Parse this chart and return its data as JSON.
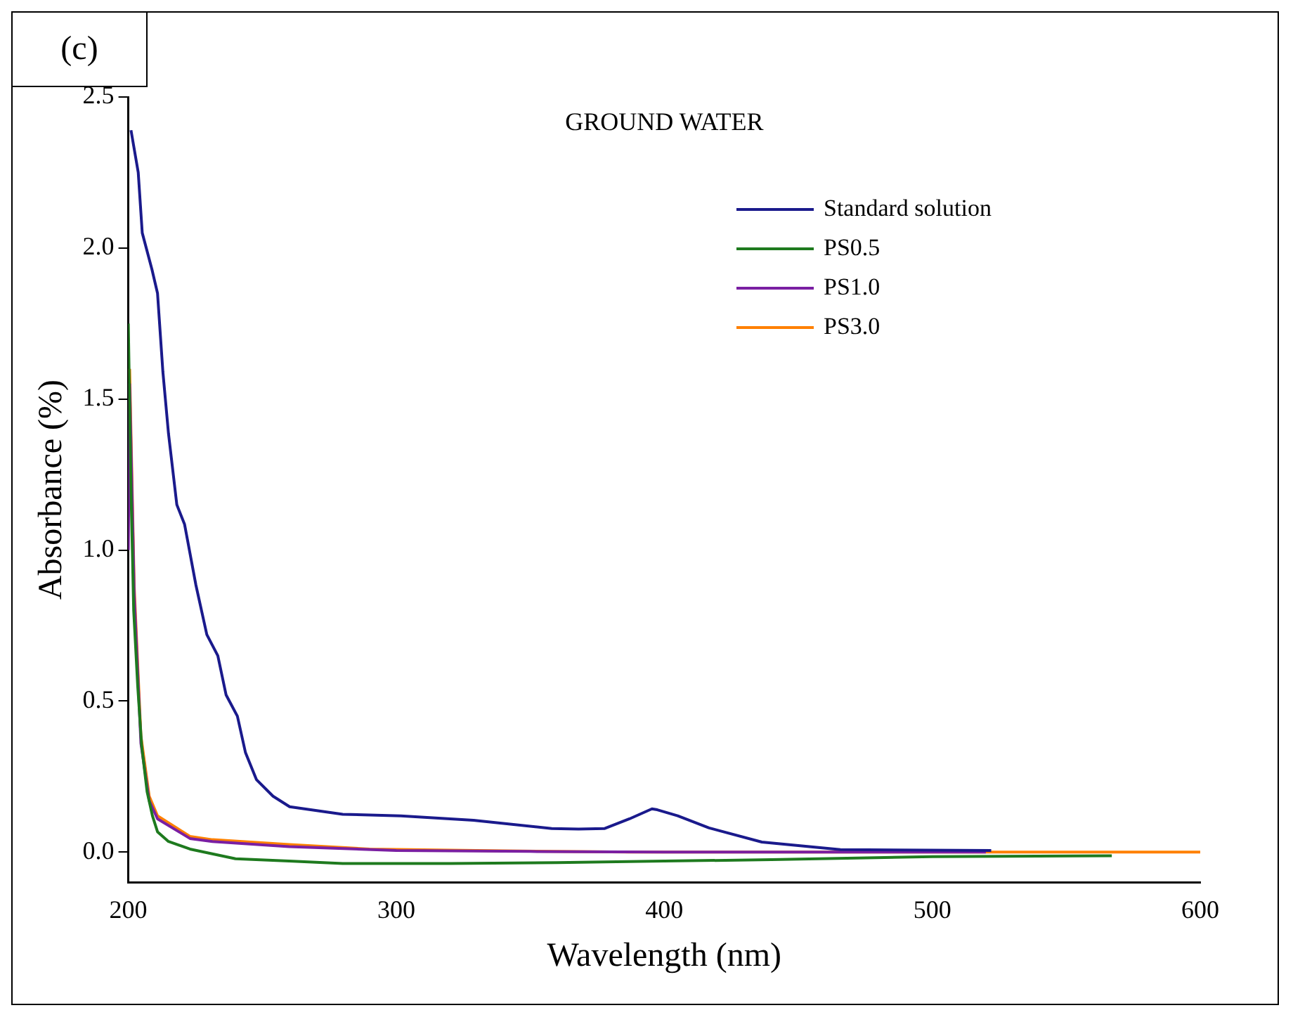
{
  "chart_data": {
    "type": "line",
    "title": "GROUND WATER",
    "xlabel": "Wavelength (nm)",
    "ylabel": "Absorbance (%)",
    "annotations": [
      "(c)"
    ],
    "xlim": [
      200,
      600
    ],
    "xticks": [
      200,
      300,
      400,
      500,
      600
    ],
    "ylim": [
      -0.1,
      2.5
    ],
    "yticks": [
      {
        "value": 0,
        "label": "0.0"
      },
      0.5,
      {
        "value": 1,
        "label": "1.0"
      },
      1.5,
      {
        "value": 2,
        "label": "2.0"
      },
      2.5
    ],
    "legend": "top right",
    "grid": false,
    "marker": "none",
    "line_style": "solid",
    "series": [
      {
        "name": "Standard solution",
        "color": "#1a1a8c",
        "x": [
          201,
          203.7,
          205.2,
          208.8,
          210.9,
          212.9,
          215,
          218.1,
          221,
          225.2,
          229.3,
          233.4,
          236.5,
          240.7,
          243.7,
          247.8,
          254,
          260.2,
          280,
          301.7,
          328.8,
          358,
          368,
          377.8,
          387,
          395.4,
          397.4,
          405,
          416.7,
          436.4,
          465.7,
          522
        ],
        "values": [
          2.39,
          2.25,
          2.05,
          1.93,
          1.85,
          1.59,
          1.385,
          1.15,
          1.085,
          0.885,
          0.72,
          0.65,
          0.52,
          0.45,
          0.33,
          0.24,
          0.185,
          0.15,
          0.125,
          0.12,
          0.105,
          0.078,
          0.076,
          0.078,
          0.11,
          0.143,
          0.14,
          0.12,
          0.08,
          0.033,
          0.008,
          0.005
        ]
      },
      {
        "name": "PS0.5",
        "color": "#1e7a1e",
        "x": [
          200,
          201,
          202,
          203.5,
          205,
          207,
          209,
          210.9,
          215,
          223,
          240,
          260,
          280,
          320,
          360,
          400,
          440,
          500,
          567
        ],
        "values": [
          1.75,
          1.2,
          0.8,
          0.55,
          0.35,
          0.2,
          0.12,
          0.067,
          0.035,
          0.01,
          -0.022,
          -0.03,
          -0.038,
          -0.038,
          -0.035,
          -0.03,
          -0.025,
          -0.015,
          -0.012
        ]
      },
      {
        "name": "PS1.0",
        "color": "#7a1fa2",
        "x": [
          200,
          200.5,
          202.2,
          204.7,
          207.8,
          210.9,
          223,
          231.4,
          260,
          300,
          350,
          400,
          450,
          520
        ],
        "values": [
          1.0,
          1.55,
          0.85,
          0.36,
          0.17,
          0.11,
          0.045,
          0.035,
          0.018,
          0.005,
          0.002,
          0.0,
          0.0,
          0.0
        ]
      },
      {
        "name": "PS3.0",
        "color": "#ff8000",
        "x": [
          200.5,
          202.2,
          204.7,
          207.8,
          210.9,
          223,
          231.4,
          260,
          290,
          330,
          387,
          450,
          520,
          600
        ],
        "values": [
          1.6,
          0.88,
          0.385,
          0.185,
          0.12,
          0.052,
          0.041,
          0.025,
          0.01,
          0.005,
          0.0,
          0.0,
          0.0,
          0.0
        ]
      }
    ]
  }
}
